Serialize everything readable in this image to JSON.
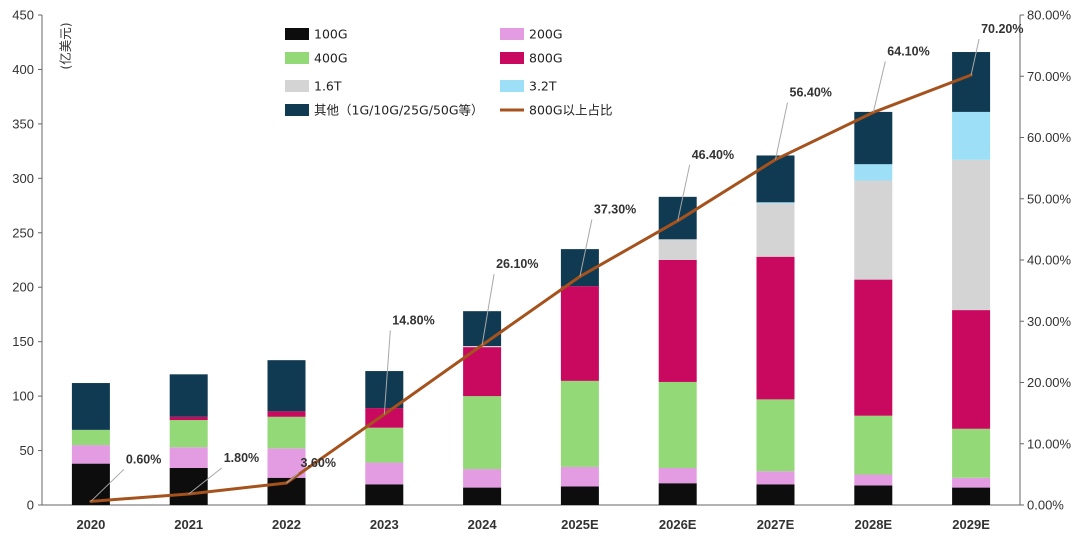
{
  "chart_data": {
    "type": "bar",
    "stacked": true,
    "categories": [
      "2020",
      "2021",
      "2022",
      "2023",
      "2024",
      "2025E",
      "2026E",
      "2027E",
      "2028E",
      "2029E"
    ],
    "ylabel": "(亿美元)",
    "ylim": [
      0,
      450
    ],
    "yticks": [
      "0",
      "50",
      "100",
      "150",
      "200",
      "250",
      "300",
      "350",
      "400",
      "450"
    ],
    "y2lim": [
      0,
      80
    ],
    "y2ticks": [
      "0.00%",
      "10.00%",
      "20.00%",
      "30.00%",
      "40.00%",
      "50.00%",
      "60.00%",
      "70.00%",
      "80.00%"
    ],
    "legend_position": "top",
    "series": [
      {
        "name": "100G",
        "color": "#0d0d0d",
        "values": [
          38,
          34,
          25,
          19,
          16,
          17,
          20,
          19,
          18,
          16
        ]
      },
      {
        "name": "200G",
        "color": "#e39be2",
        "values": [
          17,
          19,
          27,
          20,
          17,
          18,
          14,
          12,
          10,
          9
        ]
      },
      {
        "name": "400G",
        "color": "#93d978",
        "values": [
          14,
          25,
          29,
          32,
          67,
          79,
          79,
          66,
          54,
          45
        ]
      },
      {
        "name": "800G",
        "color": "#c9095f",
        "values": [
          0,
          3,
          5,
          18,
          45,
          87,
          112,
          131,
          125,
          109
        ]
      },
      {
        "name": "1.6T",
        "color": "#d4d4d4",
        "values": [
          0,
          0,
          0,
          0,
          1,
          0,
          19,
          49,
          91,
          138
        ]
      },
      {
        "name": "3.2T",
        "color": "#9ddff6",
        "values": [
          0,
          0,
          0,
          0,
          0,
          0,
          0,
          1,
          15,
          44
        ]
      },
      {
        "name": "其他（1G/10G/25G/50G等）",
        "color": "#0f3a52",
        "values": [
          43,
          39,
          47,
          34,
          32,
          34,
          39,
          43,
          48,
          55
        ]
      }
    ],
    "line": {
      "name": "800G以上占比",
      "color": "#a5521d",
      "axis": "right",
      "values": [
        0.6,
        1.8,
        3.6,
        14.8,
        26.1,
        37.3,
        46.4,
        56.4,
        64.1,
        70.2
      ],
      "labels": [
        "0.60%",
        "1.80%",
        "3.60%",
        "14.80%",
        "26.10%",
        "37.30%",
        "46.40%",
        "56.40%",
        "64.10%",
        "70.20%"
      ]
    }
  }
}
